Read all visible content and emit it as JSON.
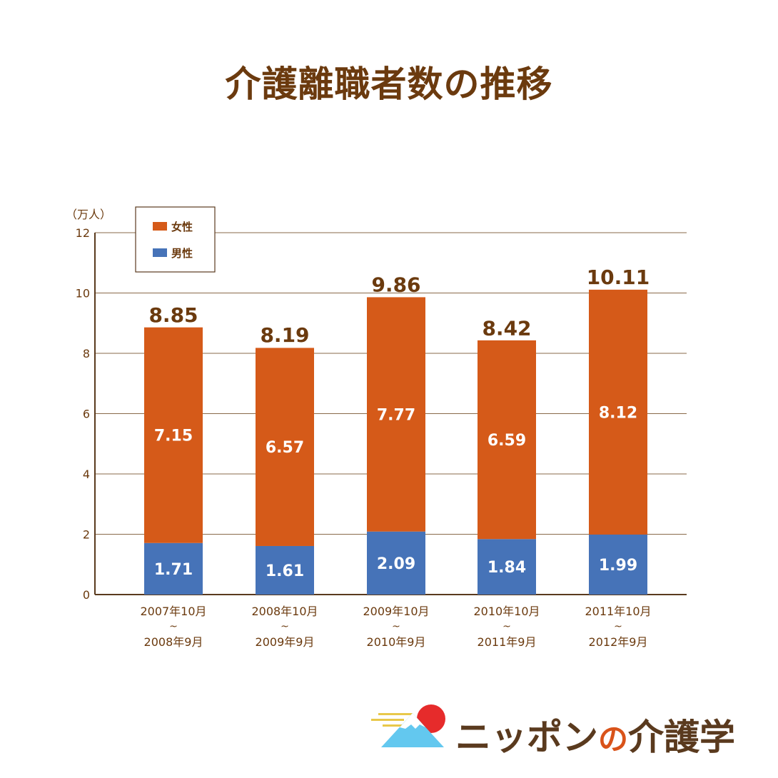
{
  "title": "介護離職者数の推移",
  "brand": {
    "part1": "ニッポン",
    "part2": "の",
    "part3": "介護学"
  },
  "chart_data": {
    "type": "bar",
    "stacked": true,
    "unit_label": "（万人）",
    "ylim": [
      0,
      12
    ],
    "yticks": [
      0,
      2,
      4,
      6,
      8,
      10,
      12
    ],
    "grid": true,
    "legend_position": "top-left",
    "categories": [
      {
        "line1": "2007年10月",
        "sep": "~",
        "line2": "2008年9月"
      },
      {
        "line1": "2008年10月",
        "sep": "~",
        "line2": "2009年9月"
      },
      {
        "line1": "2009年10月",
        "sep": "~",
        "line2": "2010年9月"
      },
      {
        "line1": "2010年10月",
        "sep": "~",
        "line2": "2011年9月"
      },
      {
        "line1": "2011年10月",
        "sep": "~",
        "line2": "2012年9月"
      }
    ],
    "series": [
      {
        "name": "男性",
        "color": "#4673b8",
        "values": [
          1.71,
          1.61,
          2.09,
          1.84,
          1.99
        ]
      },
      {
        "name": "女性",
        "color": "#d55a19",
        "values": [
          7.15,
          6.57,
          7.77,
          6.59,
          8.12
        ]
      }
    ],
    "totals": [
      8.85,
      8.19,
      9.86,
      8.42,
      10.11
    ],
    "colors": {
      "text": "#6b3a0e",
      "axis": "#5a3a1e",
      "grid": "#8a6a4a"
    }
  }
}
